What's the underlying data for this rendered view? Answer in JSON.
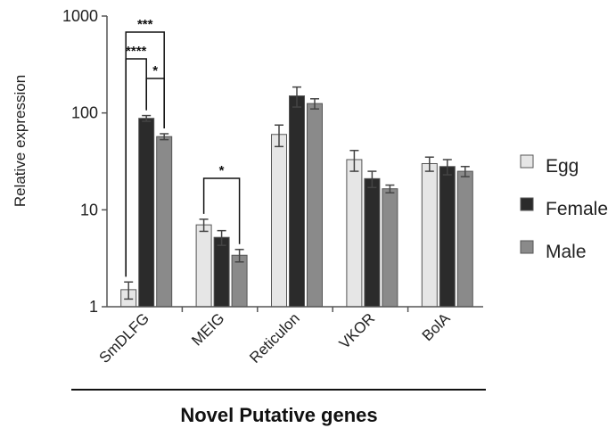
{
  "chart_data": {
    "type": "bar",
    "xlabel": "Novel Putative genes",
    "ylabel": "Relative expression",
    "yscale": "log",
    "ylim": [
      1,
      1000
    ],
    "yticks": [
      "1",
      "10",
      "100",
      "1000"
    ],
    "categories": [
      "SmDLFG",
      "MEIG",
      "Reticulon",
      "VKOR",
      "BolA"
    ],
    "series": [
      {
        "name": "Egg",
        "color": "#e6e6e6",
        "values": [
          1.5,
          7.0,
          60,
          33,
          30
        ],
        "errors": [
          0.3,
          1.0,
          15,
          8,
          5
        ]
      },
      {
        "name": "Female",
        "color": "#2b2b2b",
        "values": [
          88,
          5.2,
          150,
          21,
          28
        ],
        "errors": [
          6,
          0.9,
          35,
          4,
          5
        ]
      },
      {
        "name": "Male",
        "color": "#8a8a8a",
        "values": [
          57,
          3.4,
          125,
          16.5,
          25
        ],
        "errors": [
          4,
          0.5,
          15,
          1.5,
          3
        ]
      }
    ],
    "legend_position": "right",
    "annotations": [
      {
        "label": "***",
        "category": "SmDLFG",
        "from_series": "Egg",
        "to_series": "Male"
      },
      {
        "label": "****",
        "category": "SmDLFG",
        "from_series": "Egg",
        "to_series": "Female"
      },
      {
        "label": "*",
        "category": "SmDLFG",
        "from_series": "Female",
        "to_series": "Male"
      },
      {
        "label": "*",
        "category": "MEIG",
        "from_series": "Egg",
        "to_series": "Male"
      }
    ]
  }
}
